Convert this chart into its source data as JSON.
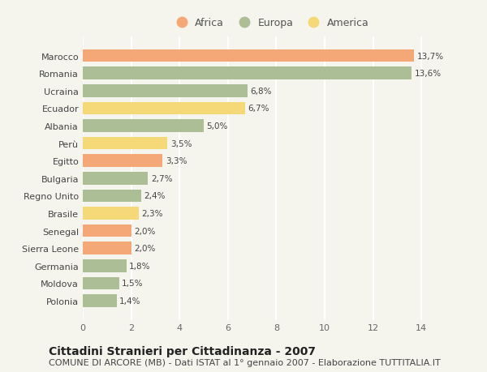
{
  "countries": [
    "Polonia",
    "Moldova",
    "Germania",
    "Sierra Leone",
    "Senegal",
    "Brasile",
    "Regno Unito",
    "Bulgaria",
    "Egitto",
    "Perù",
    "Albania",
    "Ecuador",
    "Ucraina",
    "Romania",
    "Marocco"
  ],
  "values": [
    1.4,
    1.5,
    1.8,
    2.0,
    2.0,
    2.3,
    2.4,
    2.7,
    3.3,
    3.5,
    5.0,
    6.7,
    6.8,
    13.6,
    13.7
  ],
  "labels": [
    "1,4%",
    "1,5%",
    "1,8%",
    "2,0%",
    "2,0%",
    "2,3%",
    "2,4%",
    "2,7%",
    "3,3%",
    "3,5%",
    "5,0%",
    "6,7%",
    "6,8%",
    "13,6%",
    "13,7%"
  ],
  "continents": [
    "Europa",
    "Europa",
    "Europa",
    "Africa",
    "Africa",
    "America",
    "Europa",
    "Europa",
    "Africa",
    "America",
    "Europa",
    "America",
    "Europa",
    "Europa",
    "Africa"
  ],
  "colors": {
    "Africa": "#F4A878",
    "Europa": "#ABBE96",
    "America": "#F5D878"
  },
  "legend_order": [
    "Africa",
    "Europa",
    "America"
  ],
  "xlim": [
    0,
    15.5
  ],
  "xticks": [
    0,
    2,
    4,
    6,
    8,
    10,
    12,
    14
  ],
  "title": "Cittadini Stranieri per Cittadinanza - 2007",
  "subtitle": "COMUNE DI ARCORE (MB) - Dati ISTAT al 1° gennaio 2007 - Elaborazione TUTTITALIA.IT",
  "background_color": "#F5F5EE",
  "grid_color": "#FFFFFF",
  "bar_height": 0.72,
  "title_fontsize": 10,
  "subtitle_fontsize": 8,
  "label_fontsize": 7.5,
  "tick_fontsize": 8,
  "legend_fontsize": 9
}
